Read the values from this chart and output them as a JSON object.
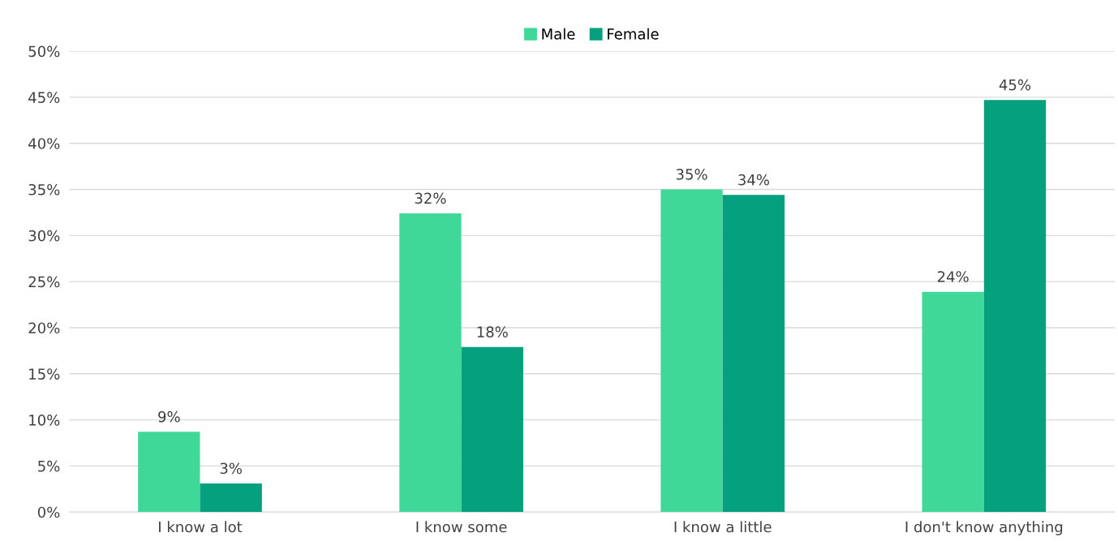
{
  "chart_data": {
    "type": "bar",
    "categories": [
      "I know a lot",
      "I know some",
      "I know a little",
      "I don't know anything"
    ],
    "series": [
      {
        "name": "Male",
        "color": "#40d898",
        "values": [
          8.7,
          32.4,
          35.0,
          23.9
        ],
        "value_labels": [
          "9%",
          "32%",
          "35%",
          "24%"
        ]
      },
      {
        "name": "Female",
        "color": "#05a07d",
        "values": [
          3.1,
          17.9,
          34.4,
          44.7
        ],
        "value_labels": [
          "3%",
          "18%",
          "34%",
          "45%"
        ]
      }
    ],
    "ylim": [
      0,
      50
    ],
    "yticks": [
      {
        "value": 0,
        "label": "0%"
      },
      {
        "value": 5,
        "label": "5%"
      },
      {
        "value": 10,
        "label": "10%"
      },
      {
        "value": 15,
        "label": "15%"
      },
      {
        "value": 20,
        "label": "20%"
      },
      {
        "value": 25,
        "label": "25%"
      },
      {
        "value": 30,
        "label": "30%"
      },
      {
        "value": 35,
        "label": "35%"
      },
      {
        "value": 40,
        "label": "40%"
      },
      {
        "value": 45,
        "label": "45%"
      },
      {
        "value": 50,
        "label": "50%"
      }
    ],
    "grid": "y",
    "legend": "top"
  }
}
